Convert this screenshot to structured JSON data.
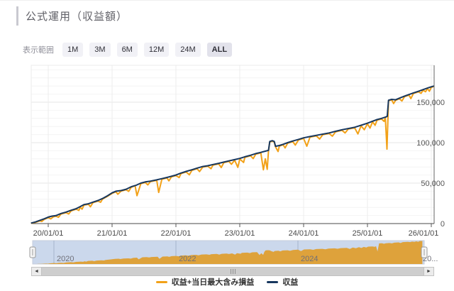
{
  "header": {
    "title": "公式運用（収益額）"
  },
  "range_selector": {
    "label": "表示範囲",
    "buttons": [
      {
        "label": "1M",
        "active": false
      },
      {
        "label": "3M",
        "active": false
      },
      {
        "label": "6M",
        "active": false
      },
      {
        "label": "12M",
        "active": false
      },
      {
        "label": "24M",
        "active": false
      },
      {
        "label": "ALL",
        "active": true
      }
    ]
  },
  "legend": [
    {
      "label": "収益+当日最大含み損益",
      "color": "#F2A118"
    },
    {
      "label": "収益",
      "color": "#17375E"
    }
  ],
  "scrollbar": {
    "left_arrow": "◄",
    "right_arrow": "►"
  },
  "colors": {
    "accent_orange": "#F2A118",
    "accent_navy": "#17375E",
    "navigator_bg": "#CBD8EC",
    "navigator_fill": "#DEA23B",
    "grid_minor": "#f4f4f4",
    "grid_major": "#e6e6e6",
    "axis_line": "#4a4a4a"
  },
  "chart_data": {
    "type": "line",
    "title": "公式運用（収益額）",
    "x_axis": {
      "type": "date",
      "range_years": [
        2019.73,
        2026.04
      ],
      "ticks": [
        {
          "year": 2020,
          "label": "20/01/01"
        },
        {
          "year": 2021,
          "label": "21/01/01"
        },
        {
          "year": 2022,
          "label": "22/01/01"
        },
        {
          "year": 2023,
          "label": "23/01/01"
        },
        {
          "year": 2024,
          "label": "24/01/01"
        },
        {
          "year": 2025,
          "label": "25/01/01"
        },
        {
          "year": 2026,
          "label": "26/01/01"
        }
      ]
    },
    "y_axis": {
      "max": 195000,
      "minor_step": 10000,
      "ticks": [
        {
          "value": 0,
          "label": "0"
        },
        {
          "value": 50000,
          "label": "50,000"
        },
        {
          "value": 100000,
          "label": "100,000"
        },
        {
          "value": 150000,
          "label": "150,000"
        }
      ]
    },
    "legend_position": "bottom",
    "grid": true,
    "series": [
      {
        "name": "収益+当日最大含み損益",
        "color": "#F2A118",
        "points": [
          [
            2019.73,
            300
          ],
          [
            2019.8,
            1500
          ],
          [
            2019.87,
            3300
          ],
          [
            2019.9,
            2600
          ],
          [
            2019.94,
            5300
          ],
          [
            2020.0,
            7300
          ],
          [
            2020.04,
            5800
          ],
          [
            2020.08,
            8300
          ],
          [
            2020.12,
            9100
          ],
          [
            2020.16,
            7800
          ],
          [
            2020.2,
            11800
          ],
          [
            2020.28,
            13500
          ],
          [
            2020.32,
            11800
          ],
          [
            2020.36,
            15800
          ],
          [
            2020.44,
            17800
          ],
          [
            2020.48,
            16200
          ],
          [
            2020.5,
            20300
          ],
          [
            2020.53,
            17800
          ],
          [
            2020.56,
            22800
          ],
          [
            2020.63,
            23800
          ],
          [
            2020.66,
            20800
          ],
          [
            2020.7,
            25800
          ],
          [
            2020.78,
            27800
          ],
          [
            2020.82,
            26300
          ],
          [
            2020.85,
            30300
          ],
          [
            2020.93,
            33800
          ],
          [
            2021.0,
            37300
          ],
          [
            2021.06,
            39300
          ],
          [
            2021.09,
            36300
          ],
          [
            2021.14,
            40100
          ],
          [
            2021.22,
            41800
          ],
          [
            2021.26,
            39800
          ],
          [
            2021.3,
            44800
          ],
          [
            2021.36,
            46800
          ],
          [
            2021.39,
            34500
          ],
          [
            2021.45,
            49300
          ],
          [
            2021.52,
            50800
          ],
          [
            2021.56,
            47800
          ],
          [
            2021.6,
            51800
          ],
          [
            2021.7,
            53300
          ],
          [
            2021.73,
            38500
          ],
          [
            2021.78,
            54800
          ],
          [
            2021.86,
            56300
          ],
          [
            2021.89,
            52800
          ],
          [
            2021.93,
            57800
          ],
          [
            2022.0,
            59300
          ],
          [
            2022.05,
            56800
          ],
          [
            2022.08,
            61800
          ],
          [
            2022.16,
            63800
          ],
          [
            2022.21,
            60300
          ],
          [
            2022.25,
            65800
          ],
          [
            2022.33,
            67800
          ],
          [
            2022.37,
            64300
          ],
          [
            2022.42,
            69800
          ],
          [
            2022.5,
            70800
          ],
          [
            2022.55,
            67800
          ],
          [
            2022.58,
            72300
          ],
          [
            2022.67,
            73800
          ],
          [
            2022.71,
            69300
          ],
          [
            2022.75,
            75300
          ],
          [
            2022.83,
            76800
          ],
          [
            2022.87,
            73300
          ],
          [
            2022.92,
            78300
          ],
          [
            2022.97,
            69500
          ],
          [
            2023.0,
            79800
          ],
          [
            2023.06,
            75500
          ],
          [
            2023.08,
            81800
          ],
          [
            2023.17,
            83800
          ],
          [
            2023.21,
            80300
          ],
          [
            2023.25,
            85800
          ],
          [
            2023.33,
            87300
          ],
          [
            2023.37,
            66500
          ],
          [
            2023.4,
            80000
          ],
          [
            2023.43,
            67000
          ],
          [
            2023.45,
            89800
          ],
          [
            2023.47,
            100800
          ],
          [
            2023.51,
            101800
          ],
          [
            2023.54,
            100800
          ],
          [
            2023.56,
            94800
          ],
          [
            2023.6,
            89000
          ],
          [
            2023.62,
            95800
          ],
          [
            2023.68,
            97300
          ],
          [
            2023.71,
            93500
          ],
          [
            2023.75,
            99300
          ],
          [
            2023.83,
            101300
          ],
          [
            2023.87,
            97000
          ],
          [
            2023.92,
            103300
          ],
          [
            2024.0,
            105300
          ],
          [
            2024.05,
            95600
          ],
          [
            2024.1,
            106800
          ],
          [
            2024.2,
            108300
          ],
          [
            2024.25,
            104500
          ],
          [
            2024.3,
            109800
          ],
          [
            2024.4,
            111300
          ],
          [
            2024.45,
            108000
          ],
          [
            2024.5,
            113300
          ],
          [
            2024.6,
            115300
          ],
          [
            2024.65,
            112000
          ],
          [
            2024.7,
            116800
          ],
          [
            2024.8,
            118300
          ],
          [
            2024.85,
            110800
          ],
          [
            2024.9,
            120800
          ],
          [
            2024.95,
            116000
          ],
          [
            2025.0,
            123300
          ],
          [
            2025.04,
            118000
          ],
          [
            2025.08,
            125800
          ],
          [
            2025.12,
            121500
          ],
          [
            2025.15,
            127800
          ],
          [
            2025.22,
            129300
          ],
          [
            2025.26,
            126300
          ],
          [
            2025.28,
            130800
          ],
          [
            2025.305,
            92000
          ],
          [
            2025.33,
            151800
          ],
          [
            2025.38,
            152800
          ],
          [
            2025.41,
            148300
          ],
          [
            2025.44,
            152300
          ],
          [
            2025.5,
            154300
          ],
          [
            2025.54,
            151500
          ],
          [
            2025.58,
            156800
          ],
          [
            2025.65,
            158800
          ],
          [
            2025.68,
            154500
          ],
          [
            2025.72,
            160800
          ],
          [
            2025.8,
            162800
          ],
          [
            2025.84,
            161000
          ],
          [
            2025.87,
            164800
          ],
          [
            2025.91,
            163000
          ],
          [
            2025.94,
            166800
          ],
          [
            2025.97,
            163500
          ],
          [
            2026.0,
            168300
          ],
          [
            2026.04,
            169500
          ]
        ]
      },
      {
        "name": "収益",
        "color": "#17375E",
        "points": [
          [
            2019.73,
            500
          ],
          [
            2019.8,
            2000
          ],
          [
            2019.87,
            4000
          ],
          [
            2019.94,
            6000
          ],
          [
            2020.0,
            8000
          ],
          [
            2020.06,
            9200
          ],
          [
            2020.12,
            9800
          ],
          [
            2020.2,
            12500
          ],
          [
            2020.28,
            14200
          ],
          [
            2020.36,
            16500
          ],
          [
            2020.44,
            18500
          ],
          [
            2020.5,
            21000
          ],
          [
            2020.56,
            23500
          ],
          [
            2020.63,
            24500
          ],
          [
            2020.7,
            26500
          ],
          [
            2020.78,
            28500
          ],
          [
            2020.85,
            31000
          ],
          [
            2020.93,
            34500
          ],
          [
            2021.0,
            38000
          ],
          [
            2021.06,
            40000
          ],
          [
            2021.14,
            40800
          ],
          [
            2021.22,
            42500
          ],
          [
            2021.3,
            45500
          ],
          [
            2021.38,
            47500
          ],
          [
            2021.45,
            50000
          ],
          [
            2021.52,
            51500
          ],
          [
            2021.6,
            52500
          ],
          [
            2021.7,
            54000
          ],
          [
            2021.78,
            55500
          ],
          [
            2021.86,
            57000
          ],
          [
            2021.93,
            58500
          ],
          [
            2022.0,
            60000
          ],
          [
            2022.08,
            62500
          ],
          [
            2022.16,
            64500
          ],
          [
            2022.25,
            66500
          ],
          [
            2022.33,
            68500
          ],
          [
            2022.42,
            70500
          ],
          [
            2022.5,
            71500
          ],
          [
            2022.58,
            73000
          ],
          [
            2022.67,
            74500
          ],
          [
            2022.75,
            76000
          ],
          [
            2022.83,
            77500
          ],
          [
            2022.92,
            79000
          ],
          [
            2023.0,
            80500
          ],
          [
            2023.08,
            82500
          ],
          [
            2023.17,
            84500
          ],
          [
            2023.25,
            86500
          ],
          [
            2023.33,
            88000
          ],
          [
            2023.4,
            89500
          ],
          [
            2023.45,
            90500
          ],
          [
            2023.47,
            101500
          ],
          [
            2023.51,
            102500
          ],
          [
            2023.54,
            101500
          ],
          [
            2023.56,
            95500
          ],
          [
            2023.62,
            96500
          ],
          [
            2023.68,
            98000
          ],
          [
            2023.75,
            100000
          ],
          [
            2023.83,
            102000
          ],
          [
            2023.92,
            104000
          ],
          [
            2024.0,
            106000
          ],
          [
            2024.1,
            107500
          ],
          [
            2024.2,
            109000
          ],
          [
            2024.3,
            110500
          ],
          [
            2024.4,
            112000
          ],
          [
            2024.5,
            114000
          ],
          [
            2024.6,
            116000
          ],
          [
            2024.7,
            117500
          ],
          [
            2024.8,
            119000
          ],
          [
            2024.9,
            121500
          ],
          [
            2025.0,
            124000
          ],
          [
            2025.08,
            126500
          ],
          [
            2025.15,
            128500
          ],
          [
            2025.22,
            130000
          ],
          [
            2025.28,
            131500
          ],
          [
            2025.31,
            132500
          ],
          [
            2025.33,
            152500
          ],
          [
            2025.38,
            153500
          ],
          [
            2025.44,
            153000
          ],
          [
            2025.5,
            155000
          ],
          [
            2025.58,
            157500
          ],
          [
            2025.65,
            159500
          ],
          [
            2025.72,
            161500
          ],
          [
            2025.8,
            163500
          ],
          [
            2025.87,
            165500
          ],
          [
            2025.94,
            167500
          ],
          [
            2026.0,
            169000
          ],
          [
            2026.04,
            170000
          ]
        ]
      }
    ],
    "navigator": {
      "series_name": "収益+当日最大含み損益",
      "labels": [
        {
          "year": 2020,
          "text": "2020"
        },
        {
          "year": 2022,
          "text": "2022"
        },
        {
          "year": 2024,
          "text": "2024"
        },
        {
          "year": 2026,
          "text": "20..."
        }
      ]
    }
  }
}
